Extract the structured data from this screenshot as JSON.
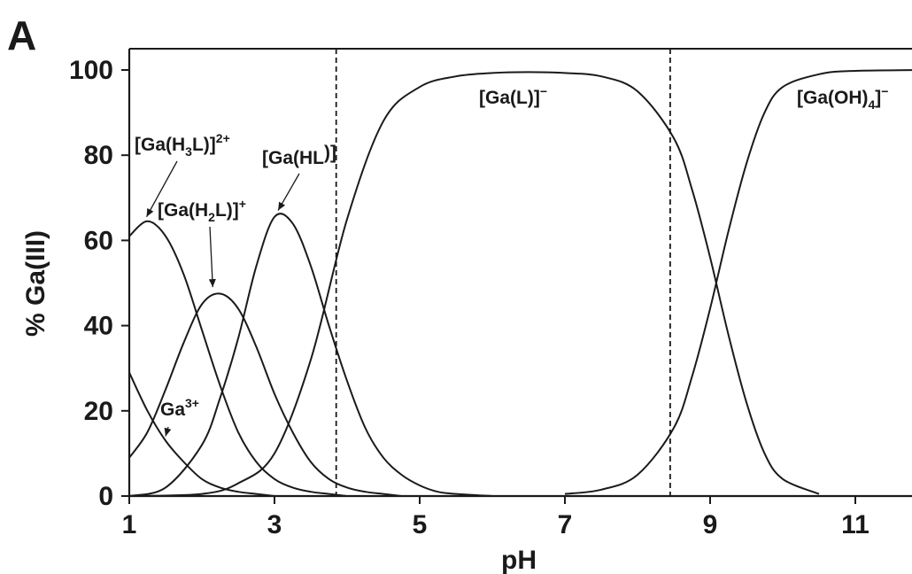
{
  "figure": {
    "panel_label": "A"
  },
  "chart_data": {
    "type": "line",
    "xlabel": "pH",
    "ylabel": "% Ga(III)",
    "xlim": [
      1,
      12.1
    ],
    "ylim": [
      0,
      100
    ],
    "x_ticks": [
      1,
      3,
      5,
      7,
      9,
      11
    ],
    "y_ticks": [
      0,
      20,
      40,
      60,
      80,
      100
    ],
    "grid": false,
    "legend": "none",
    "vertical_lines": [
      3.85,
      8.45
    ],
    "species": [
      {
        "label": "Ga³⁺",
        "label_parts": [
          "Ga",
          "3+",
          ""
        ],
        "apex": {
          "x": 1.5,
          "y": 13
        }
      },
      {
        "label": "[Ga(H₃L)]²⁺",
        "label_parts": [
          "[Ga(H",
          "3",
          "L)]",
          "2+"
        ],
        "apex": {
          "x": 1.25,
          "y": 64.5
        }
      },
      {
        "label": "[Ga(H₂L)]⁺",
        "label_parts": [
          "[Ga(H",
          "2",
          "L)]",
          "+"
        ],
        "apex": {
          "x": 2.15,
          "y": 48
        }
      },
      {
        "label": "[Ga(HL)]",
        "label_parts": [
          "[Ga(HL",
          "",
          ")]",
          ""
        ],
        "apex": {
          "x": 3.05,
          "y": 66
        }
      },
      {
        "label": "[Ga(L)]⁻",
        "label_parts": [
          "[Ga(L)]",
          "",
          "",
          "−"
        ]
      },
      {
        "label": "[Ga(OH)₄]⁻",
        "label_parts": [
          "[Ga(OH)",
          "4",
          "]",
          "−"
        ]
      }
    ],
    "series": [
      {
        "x": [
          1,
          1.25,
          1.5,
          1.75,
          2,
          2.25,
          2.5,
          2.75,
          3
        ],
        "y": [
          29,
          20,
          13,
          8,
          4,
          2,
          1,
          0.5,
          0
        ]
      },
      {
        "x": [
          1,
          1.25,
          1.5,
          1.75,
          2,
          2.25,
          2.5,
          2.75,
          3,
          3.25,
          3.5,
          3.75,
          4
        ],
        "y": [
          61,
          64.5,
          61,
          52,
          39,
          26,
          15,
          8,
          4,
          2,
          1,
          0.5,
          0
        ]
      },
      {
        "x": [
          1,
          1.25,
          1.5,
          1.75,
          2,
          2.25,
          2.5,
          2.75,
          3,
          3.25,
          3.5,
          3.75,
          4,
          4.25,
          4.5,
          4.75
        ],
        "y": [
          9,
          15,
          25,
          36,
          45,
          47.5,
          44,
          35,
          24,
          15,
          8,
          4,
          2,
          1,
          0.5,
          0
        ]
      },
      {
        "x": [
          1,
          1.5,
          2,
          2.25,
          2.5,
          2.75,
          3,
          3.25,
          3.5,
          3.75,
          4,
          4.25,
          4.5,
          4.75,
          5,
          5.25,
          5.5,
          6
        ],
        "y": [
          0,
          2,
          12,
          23,
          37,
          54,
          65.5,
          64,
          54,
          40,
          27,
          16,
          9,
          5,
          2.5,
          1,
          0.5,
          0
        ]
      },
      {
        "x": [
          1,
          2,
          2.5,
          3,
          3.5,
          4,
          4.5,
          5,
          5.5,
          6,
          6.5,
          7,
          7.5,
          8,
          8.5,
          8.75,
          9,
          9.25,
          9.5,
          9.75,
          10,
          10.5
        ],
        "y": [
          0,
          0.5,
          3,
          10,
          32,
          65,
          88,
          96,
          98.5,
          99.3,
          99.5,
          99.3,
          98.5,
          95,
          84,
          72,
          56,
          38,
          22,
          10,
          4,
          0.5
        ]
      },
      {
        "x": [
          7,
          7.5,
          8,
          8.5,
          8.75,
          9,
          9.25,
          9.5,
          9.75,
          10,
          10.5,
          11,
          12.1
        ],
        "y": [
          0.5,
          1.5,
          5,
          16,
          28,
          44,
          62,
          78,
          90,
          96,
          99,
          99.8,
          100
        ]
      }
    ]
  }
}
